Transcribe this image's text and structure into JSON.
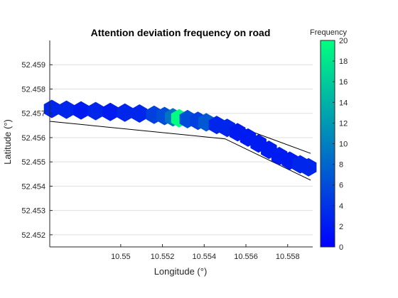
{
  "chart_data": {
    "type": "scatter",
    "title": "Attention deviation frequency on road",
    "xlabel": "Longitude (°)",
    "ylabel": "Latitude (°)",
    "xlim": [
      10.5466,
      10.5592
    ],
    "ylim": [
      52.4515,
      52.46
    ],
    "xticks": [
      10.55,
      10.552,
      10.554,
      10.556,
      10.558
    ],
    "xtick_labels": [
      "10.55",
      "10.552",
      "10.554",
      "10.556",
      "10.558"
    ],
    "yticks": [
      52.452,
      52.453,
      52.454,
      52.455,
      52.456,
      52.457,
      52.458,
      52.459
    ],
    "ytick_labels": [
      "52.452",
      "52.453",
      "52.454",
      "52.455",
      "52.456",
      "52.457",
      "52.458",
      "52.459"
    ],
    "grid": "horizontal",
    "colorbar": {
      "title": "Frequency",
      "range": [
        0,
        20
      ],
      "ticks": [
        0,
        2,
        4,
        6,
        8,
        10,
        12,
        14,
        16,
        18,
        20
      ],
      "colormap": [
        "#0000ff",
        "#00ff80"
      ]
    },
    "road_edges": [
      {
        "x": [
          10.5466,
          10.555,
          10.5591
        ],
        "y": [
          52.45735,
          52.45665,
          52.45535
        ]
      },
      {
        "x": [
          10.5466,
          10.555,
          10.5591
        ],
        "y": [
          52.45667,
          52.45595,
          52.45425
        ]
      }
    ],
    "points": [
      {
        "x": 10.5467,
        "y": 52.45718,
        "f": 3
      },
      {
        "x": 10.5474,
        "y": 52.45715,
        "f": 3
      },
      {
        "x": 10.5481,
        "y": 52.45712,
        "f": 2
      },
      {
        "x": 10.5488,
        "y": 52.45709,
        "f": 3
      },
      {
        "x": 10.5495,
        "y": 52.45706,
        "f": 2
      },
      {
        "x": 10.5502,
        "y": 52.45703,
        "f": 3
      },
      {
        "x": 10.5509,
        "y": 52.45699,
        "f": 3
      },
      {
        "x": 10.5516,
        "y": 52.45694,
        "f": 5
      },
      {
        "x": 10.5521,
        "y": 52.45689,
        "f": 6
      },
      {
        "x": 10.5525,
        "y": 52.45684,
        "f": 9
      },
      {
        "x": 10.5528,
        "y": 52.4568,
        "f": 20
      },
      {
        "x": 10.5532,
        "y": 52.45676,
        "f": 6
      },
      {
        "x": 10.5537,
        "y": 52.45669,
        "f": 5
      },
      {
        "x": 10.5541,
        "y": 52.45663,
        "f": 7
      },
      {
        "x": 10.5546,
        "y": 52.45652,
        "f": 3
      },
      {
        "x": 10.5551,
        "y": 52.4564,
        "f": 3
      },
      {
        "x": 10.5556,
        "y": 52.45622,
        "f": 2
      },
      {
        "x": 10.5561,
        "y": 52.456,
        "f": 2
      },
      {
        "x": 10.5566,
        "y": 52.45576,
        "f": 2
      },
      {
        "x": 10.5571,
        "y": 52.4555,
        "f": 2
      },
      {
        "x": 10.5576,
        "y": 52.45524,
        "f": 2
      },
      {
        "x": 10.5581,
        "y": 52.45505,
        "f": 2
      },
      {
        "x": 10.5586,
        "y": 52.4549,
        "f": 3
      },
      {
        "x": 10.559,
        "y": 52.45478,
        "f": 3
      }
    ]
  }
}
